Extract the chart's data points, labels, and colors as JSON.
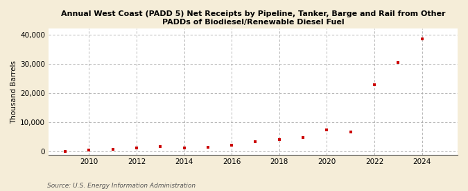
{
  "title": "Annual West Coast (PADD 5) Net Receipts by Pipeline, Tanker, Barge and Rail from Other\nPADDs of Biodiesel/Renewable Diesel Fuel",
  "ylabel": "Thousand Barrels",
  "source": "Source: U.S. Energy Information Administration",
  "background_color": "#f5edd8",
  "plot_background_color": "#ffffff",
  "marker_color": "#cc0000",
  "grid_color": "#aaaaaa",
  "xlim": [
    2008.3,
    2025.5
  ],
  "ylim": [
    -1200,
    42000
  ],
  "yticks": [
    0,
    10000,
    20000,
    30000,
    40000
  ],
  "xticks": [
    2010,
    2012,
    2014,
    2016,
    2018,
    2020,
    2022,
    2024
  ],
  "years": [
    2009,
    2010,
    2011,
    2012,
    2013,
    2014,
    2015,
    2016,
    2017,
    2018,
    2019,
    2020,
    2021,
    2022,
    2023,
    2024
  ],
  "values": [
    100,
    450,
    800,
    1100,
    1600,
    1300,
    1500,
    2200,
    3300,
    4100,
    4700,
    7400,
    6700,
    22800,
    30500,
    38500
  ]
}
